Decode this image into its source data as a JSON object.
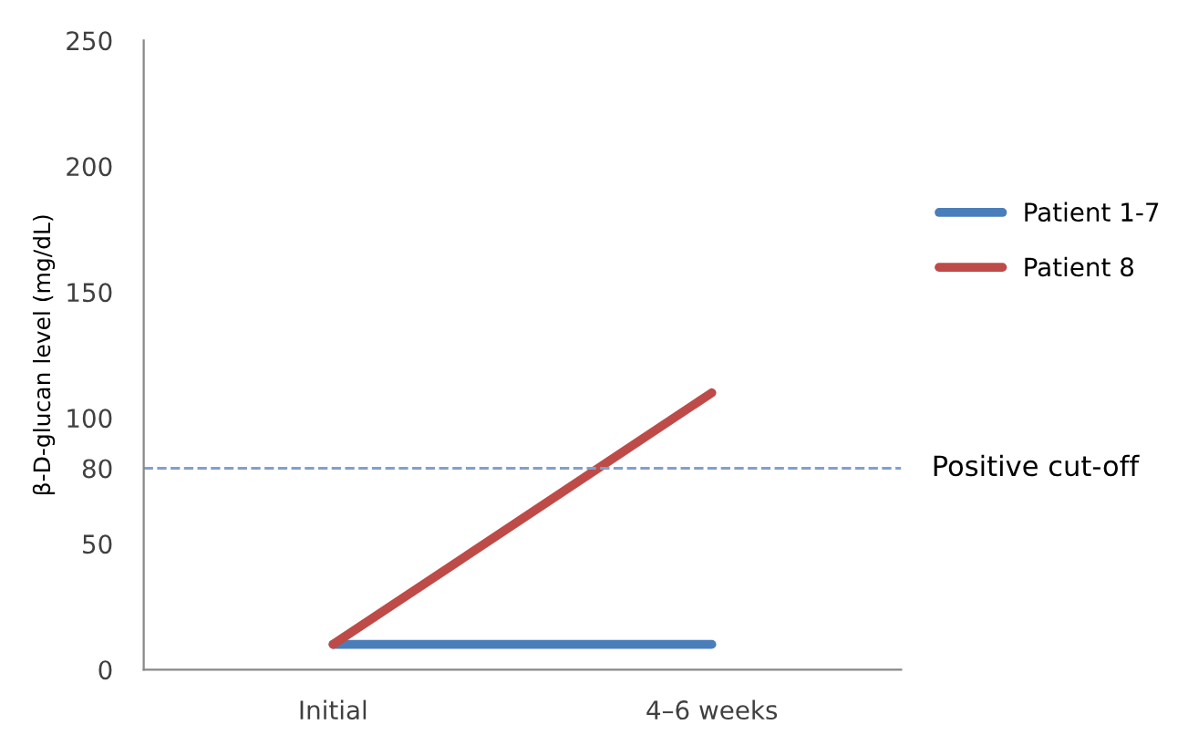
{
  "chart_data": {
    "type": "line",
    "ylabel": "β-D-glucan level (mg/dL)",
    "categories": [
      "Initial",
      "4–6 weeks"
    ],
    "series": [
      {
        "name": "Patient 1-7",
        "color": "#4a7ebb",
        "values": [
          10,
          10
        ]
      },
      {
        "name": "Patient 8",
        "color": "#be4b48",
        "values": [
          10,
          110
        ]
      }
    ],
    "ylim": [
      0,
      250
    ],
    "yticks": [
      0,
      50,
      80,
      100,
      150,
      200,
      250
    ],
    "ref_lines": [
      {
        "axis": "y",
        "value": 80,
        "label": "Positive cut-off",
        "color": "#7f9fcf",
        "line_style": "dashed"
      }
    ],
    "legend": "right",
    "grid": false,
    "marker": "none",
    "line_style": "solid"
  }
}
